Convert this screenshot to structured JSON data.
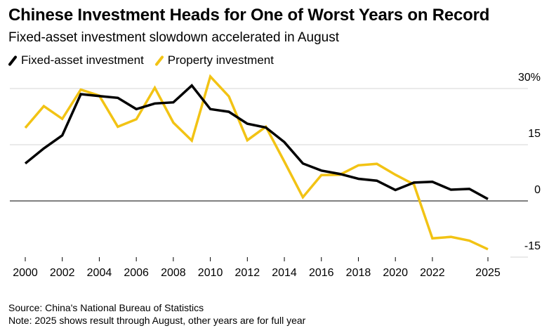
{
  "chart_data": {
    "type": "line",
    "title": "Chinese Investment Heads for One of Worst Years on Record",
    "subtitle": "Fixed-asset investment slowdown accelerated in August",
    "x": [
      2000,
      2001,
      2002,
      2003,
      2004,
      2005,
      2006,
      2007,
      2008,
      2009,
      2010,
      2011,
      2012,
      2013,
      2014,
      2015,
      2016,
      2017,
      2018,
      2019,
      2020,
      2021,
      2022,
      2023,
      2024,
      2025
    ],
    "series": [
      {
        "name": "Fixed-asset investment",
        "color": "#000000",
        "values": [
          10.0,
          14.0,
          17.5,
          28.5,
          28.0,
          27.5,
          24.5,
          26.0,
          26.3,
          30.8,
          24.5,
          23.8,
          20.6,
          19.6,
          15.7,
          10.0,
          8.1,
          7.2,
          5.9,
          5.4,
          2.9,
          4.9,
          5.1,
          3.0,
          3.2,
          0.5
        ]
      },
      {
        "name": "Property investment",
        "color": "#f2c314",
        "values": [
          19.5,
          25.3,
          21.9,
          29.7,
          28.1,
          19.8,
          21.8,
          30.2,
          20.9,
          16.1,
          33.2,
          27.9,
          16.2,
          19.8,
          10.5,
          1.0,
          6.9,
          7.0,
          9.5,
          9.9,
          7.0,
          4.4,
          -10.0,
          -9.6,
          -10.6,
          -12.9
        ]
      }
    ],
    "x_ticks": [
      "2000",
      "2002",
      "2004",
      "2006",
      "2008",
      "2010",
      "2012",
      "2014",
      "2016",
      "2018",
      "2020",
      "2022",
      "2025"
    ],
    "x_tick_values": [
      2000,
      2002,
      2004,
      2006,
      2008,
      2010,
      2012,
      2014,
      2016,
      2018,
      2020,
      2022,
      2025
    ],
    "y_ticks": [
      "30%",
      "15",
      "0",
      "-15"
    ],
    "y_tick_values": [
      30,
      15,
      0,
      -15
    ],
    "xlim": [
      2000,
      2025
    ],
    "ylim": [
      -15,
      30
    ],
    "grid": true,
    "legend_position": "top-left"
  },
  "source_note": "Source: China's National Bureau of Statistics",
  "footnote": "Note: 2025 shows result through August, other years are for full year"
}
